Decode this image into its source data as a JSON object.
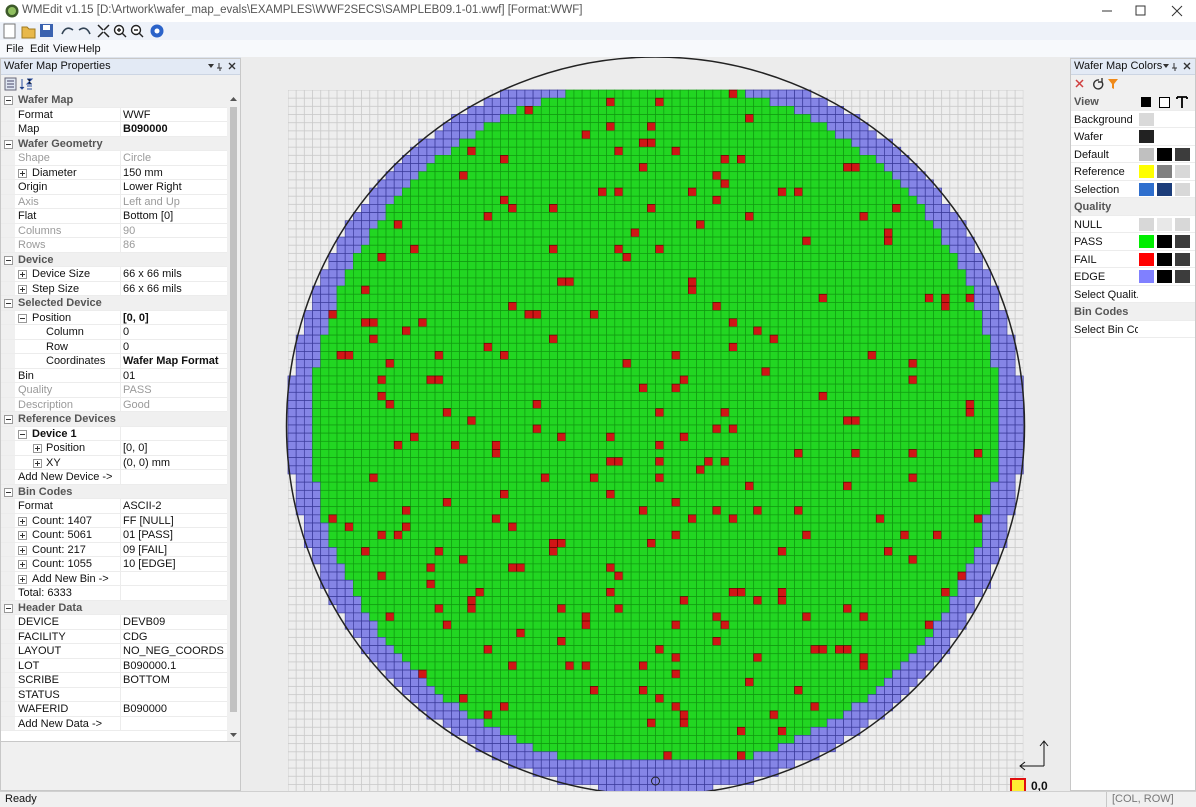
{
  "window": {
    "title": "WMEdit v1.15 [D:\\Artwork\\wafer_map_evals\\EXAMPLES\\WWF2SECS\\SAMPLEB09.1-01.wwf] [Format:WWF]",
    "menu": [
      "File",
      "Edit",
      "View",
      "Help"
    ],
    "status": "Ready",
    "status_right": "[COL, ROW]",
    "origin_label": "0,0"
  },
  "properties": {
    "title": "Wafer Map Properties",
    "sections": [
      {
        "name": "Wafer Map",
        "rows": [
          [
            "Format",
            "WWF"
          ],
          [
            "Map",
            "B090000"
          ]
        ]
      },
      {
        "name": "Wafer Geometry",
        "rows": [
          [
            "Shape",
            "Circle"
          ],
          [
            "Diameter",
            "150 mm"
          ],
          [
            "Origin",
            "Lower Right"
          ],
          [
            "Axis",
            "Left and Up"
          ],
          [
            "Flat",
            "Bottom [0]"
          ],
          [
            "Columns",
            "90"
          ],
          [
            "Rows",
            "86"
          ]
        ]
      },
      {
        "name": "Device",
        "rows": [
          [
            "Device Size",
            "66 x 66 mils"
          ],
          [
            "Step Size",
            "66 x 66 mils"
          ]
        ]
      },
      {
        "name": "Selected Device",
        "rows": [
          [
            "Position",
            "[0, 0]"
          ],
          [
            "Column",
            "0"
          ],
          [
            "Row",
            "0"
          ],
          [
            "Coordinates",
            "Wafer Map Format"
          ],
          [
            "Bin",
            "01"
          ],
          [
            "Quality",
            "PASS"
          ],
          [
            "Description",
            "Good"
          ]
        ]
      },
      {
        "name": "Reference Devices",
        "rows": [
          [
            "Device 1"
          ],
          [
            "Position",
            "[0, 0]"
          ],
          [
            "XY",
            "(0, 0) mm"
          ],
          [
            "Add New Device ->"
          ]
        ]
      },
      {
        "name": "Bin Codes",
        "rows": [
          [
            "Format",
            "ASCII-2"
          ],
          [
            "Count: 1407",
            "FF [NULL]"
          ],
          [
            "Count: 5061",
            "01 [PASS]"
          ],
          [
            "Count: 217",
            "09 [FAIL]"
          ],
          [
            "Count: 1055",
            "10 [EDGE]"
          ],
          [
            "Add New Bin ->"
          ],
          [
            "Total: 6333"
          ]
        ]
      },
      {
        "name": "Header Data",
        "rows": [
          [
            "DEVICE",
            "DEVB09"
          ],
          [
            "FACILITY",
            "CDG"
          ],
          [
            "LAYOUT",
            "NO_NEG_COORDS"
          ],
          [
            "LOT",
            "B090000.1"
          ],
          [
            "SCRIBE",
            "BOTTOM"
          ],
          [
            "STATUS"
          ],
          [
            "WAFERID",
            "B090000"
          ],
          [
            "Add New Data ->"
          ]
        ]
      }
    ]
  },
  "colors": {
    "title": "Wafer Map Colors",
    "sections": [
      {
        "name": "View",
        "rows": [
          {
            "label": "Background",
            "swatches": [
              "#d9d9d9"
            ]
          },
          {
            "label": "Wafer",
            "swatches": [
              "#222222"
            ]
          },
          {
            "label": "Default",
            "swatches": [
              "#c0c0c0",
              "#000000",
              "#3c3c3c"
            ]
          },
          {
            "label": "Reference",
            "swatches": [
              "#ffff00",
              "#808080",
              "#d8d8d8"
            ]
          },
          {
            "label": "Selection",
            "swatches": [
              "#2f6fce",
              "#1c3d7a",
              "#d8d8d8"
            ]
          }
        ]
      },
      {
        "name": "Quality",
        "rows": [
          {
            "label": "NULL",
            "swatches": [
              "#d8d8d8",
              "#e8e8e8",
              "#d8d8d8"
            ]
          },
          {
            "label": "PASS",
            "swatches": [
              "#00ee00",
              "#000000",
              "#3c3c3c"
            ]
          },
          {
            "label": "FAIL",
            "swatches": [
              "#ff0000",
              "#000000",
              "#3c3c3c"
            ]
          },
          {
            "label": "EDGE",
            "swatches": [
              "#8080ff",
              "#000000",
              "#3c3c3c"
            ]
          },
          {
            "label": "Select Qualit..."
          }
        ]
      },
      {
        "name": "Bin Codes",
        "rows": [
          {
            "label": "Select Bin Co..."
          }
        ]
      }
    ]
  }
}
